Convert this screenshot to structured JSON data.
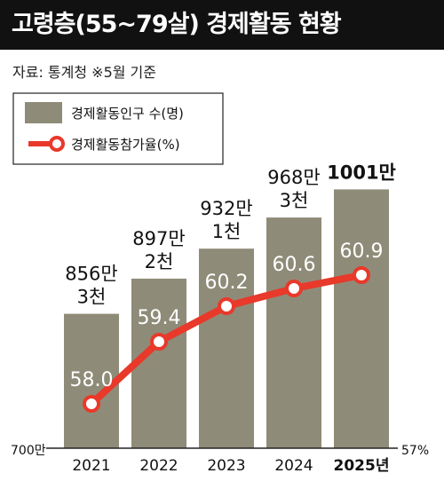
{
  "header": {
    "title": "고령층(55~79살) 경제활동 현황"
  },
  "source": {
    "text": "자료: 통계청  ※5월 기준"
  },
  "chart_data": {
    "type": "bar",
    "categories": [
      "2021",
      "2022",
      "2023",
      "2024",
      "2025년"
    ],
    "highlight_category_index": 4,
    "series": [
      {
        "name": "경제활동인구 수(명)",
        "kind": "bar",
        "values": [
          8563000,
          8972000,
          9321000,
          9683000,
          10010000
        ],
        "labels": [
          [
            "856만",
            "3천"
          ],
          [
            "897만",
            "2천"
          ],
          [
            "932만",
            "1천"
          ],
          [
            "968만",
            "3천"
          ],
          [
            "1001만"
          ]
        ],
        "color": "#8e8c78"
      },
      {
        "name": "경제활동참가율(%)",
        "kind": "line",
        "values": [
          58.0,
          59.4,
          60.2,
          60.6,
          60.9
        ],
        "labels": [
          "58.0",
          "59.4",
          "60.2",
          "60.6",
          "60.9"
        ],
        "color": "#e8392b"
      }
    ],
    "y_left": {
      "min_label": "700만",
      "min": 7000000,
      "max": 10200000
    },
    "y_right": {
      "min_label": "57%",
      "min": 57.0,
      "max": 62.0
    },
    "legend_position": "top-left"
  }
}
